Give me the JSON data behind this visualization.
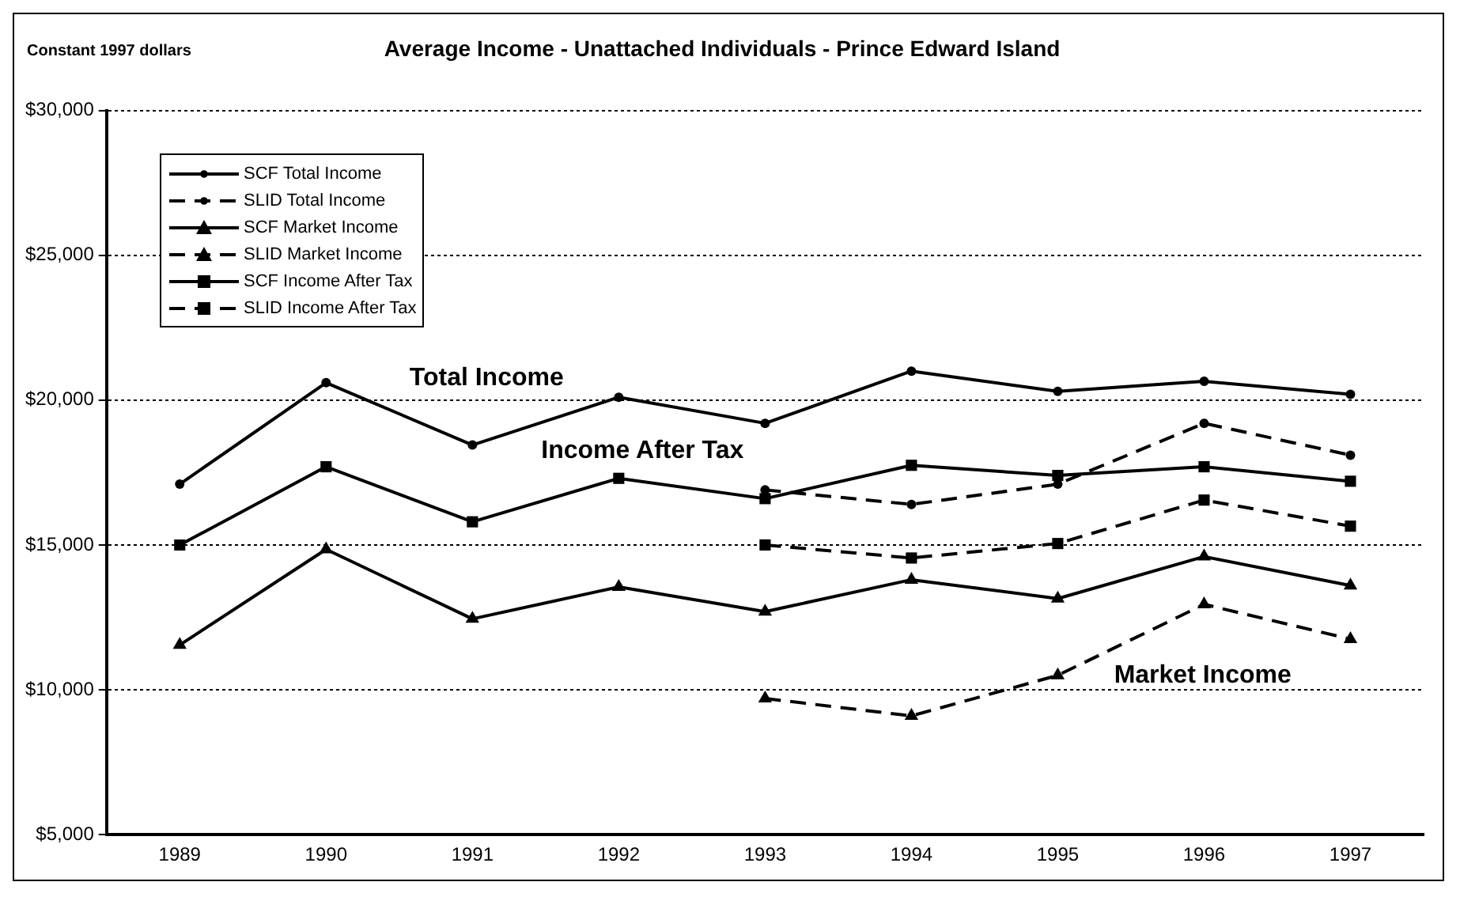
{
  "chart_data": {
    "type": "line",
    "title": "Average Income - Unattached Individuals - Prince Edward Island",
    "ylabel": "Constant 1997 dollars",
    "categories": [
      "1989",
      "1990",
      "1991",
      "1992",
      "1993",
      "1994",
      "1995",
      "1996",
      "1997"
    ],
    "series": [
      {
        "name": "SCF Total Income",
        "color": "#000000",
        "marker": "circle",
        "line_style": "solid",
        "values": [
          17100,
          20600,
          18450,
          20100,
          19200,
          21000,
          20300,
          20650,
          20200
        ]
      },
      {
        "name": "SLID Total Income",
        "color": "#000000",
        "marker": "circle",
        "line_style": "dashed",
        "values": [
          null,
          null,
          null,
          null,
          16900,
          16400,
          17100,
          19200,
          18100
        ]
      },
      {
        "name": "SCF Market Income",
        "color": "#000000",
        "marker": "triangle",
        "line_style": "solid",
        "values": [
          11550,
          14850,
          12450,
          13550,
          12700,
          13800,
          13150,
          14600,
          13600
        ]
      },
      {
        "name": "SLID Market Income",
        "color": "#000000",
        "marker": "triangle",
        "line_style": "dashed",
        "values": [
          null,
          null,
          null,
          null,
          9700,
          9100,
          10500,
          12950,
          11750
        ]
      },
      {
        "name": "SCF Income After Tax",
        "color": "#000000",
        "marker": "square",
        "line_style": "solid",
        "values": [
          15000,
          17700,
          15800,
          17300,
          16600,
          17750,
          17400,
          17700,
          17200
        ]
      },
      {
        "name": "SLID Income After Tax",
        "color": "#000000",
        "marker": "square",
        "line_style": "dashed",
        "values": [
          null,
          null,
          null,
          null,
          15000,
          14550,
          15050,
          16550,
          15650
        ]
      }
    ],
    "ylim": [
      5000,
      30000
    ],
    "yticks": [
      {
        "value": 5000,
        "label": "$5,000"
      },
      {
        "value": 10000,
        "label": "$10,000"
      },
      {
        "value": 15000,
        "label": "$15,000"
      },
      {
        "value": 20000,
        "label": "$20,000"
      },
      {
        "value": 25000,
        "label": "$25,000"
      },
      {
        "value": 30000,
        "label": "$30,000"
      }
    ],
    "grid": "y",
    "legend": "top left",
    "annotations": [
      "Total Income",
      "Income After Tax",
      "Market Income"
    ]
  }
}
